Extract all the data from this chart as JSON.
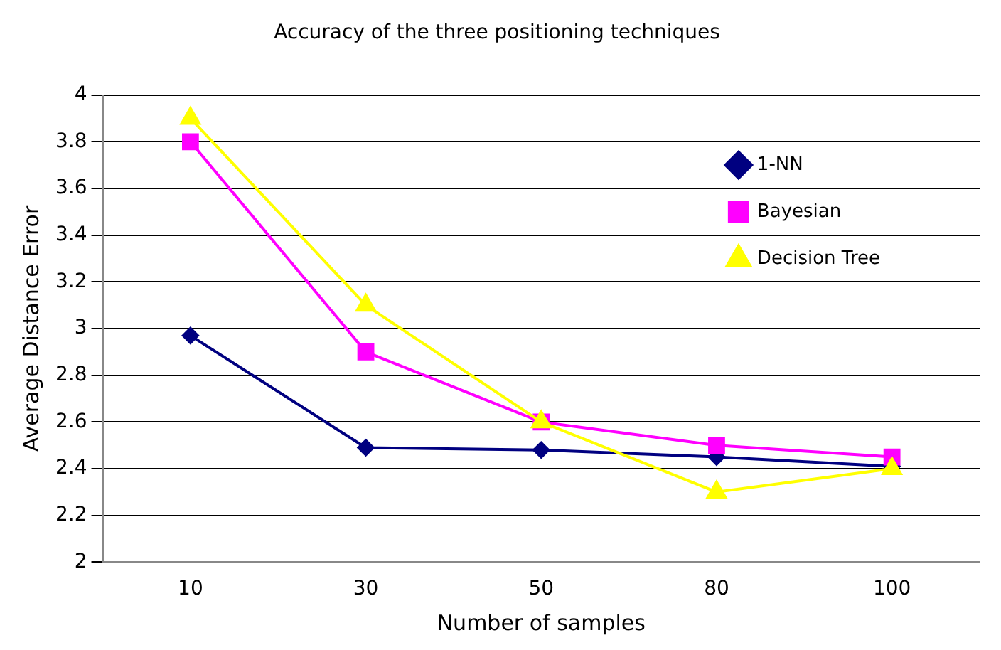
{
  "chart_data": {
    "type": "line",
    "title": "Accuracy of the three positioning techniques",
    "xlabel": "Number of samples",
    "ylabel": "Average Distance Error",
    "categories": [
      "10",
      "30",
      "50",
      "80",
      "100"
    ],
    "series": [
      {
        "name": "1-NN",
        "color": "#000080",
        "marker": "diamond",
        "values": [
          2.97,
          2.49,
          2.48,
          2.45,
          2.41
        ]
      },
      {
        "name": "Bayesian",
        "color": "#ff00ff",
        "marker": "square",
        "values": [
          3.8,
          2.9,
          2.6,
          2.5,
          2.45
        ]
      },
      {
        "name": "Decision Tree",
        "color": "#ffff00",
        "marker": "triangle",
        "values": [
          3.9,
          3.1,
          2.6,
          2.3,
          2.4
        ]
      }
    ],
    "ylim": [
      2,
      4
    ],
    "yticks": [
      2,
      2.2,
      2.4,
      2.6,
      2.8,
      3,
      3.2,
      3.4,
      3.6,
      3.8,
      4
    ],
    "grid": "y",
    "legend": "top right"
  }
}
